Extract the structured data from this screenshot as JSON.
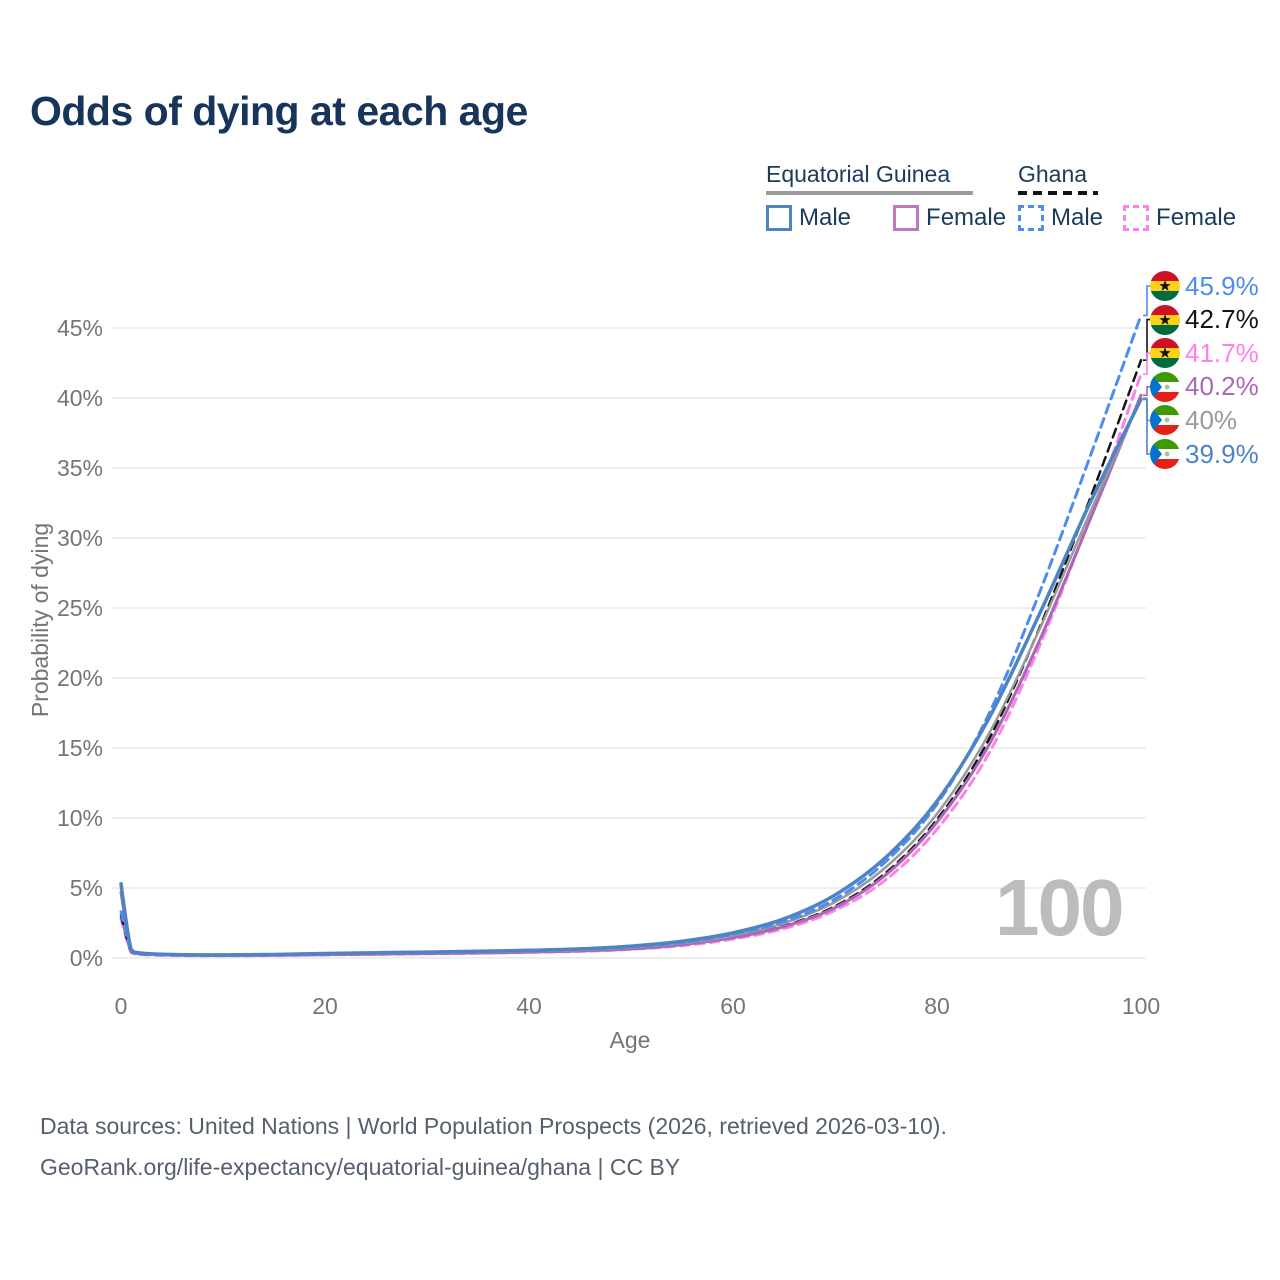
{
  "title": "Odds of dying at each age",
  "legend": {
    "groups": [
      {
        "title": "Equatorial Guinea",
        "underline_style": "solid",
        "underline_color": "#9b9b9b",
        "items": [
          {
            "label": "Male",
            "color": "#4e83c4",
            "dash": "solid"
          },
          {
            "label": "Female",
            "color": "#bd7ac1",
            "dash": "solid"
          }
        ]
      },
      {
        "title": "Ghana",
        "underline_style": "dashed",
        "underline_color": "#141414",
        "items": [
          {
            "label": "Male",
            "color": "#4e8cf0",
            "dash": "dashed"
          },
          {
            "label": "Female",
            "color": "#ff80e8",
            "dash": "dashed"
          }
        ]
      }
    ]
  },
  "watermark": "100",
  "footer": {
    "line1": "Data sources: United Nations | World Population Prospects (2026, retrieved 2026-03-10).",
    "line2": "GeoRank.org/life-expectancy/equatorial-guinea/ghana | CC BY"
  },
  "chart_data": {
    "type": "line",
    "xlabel": "Age",
    "ylabel": "Probability of dying",
    "xlim": [
      0,
      100
    ],
    "ylim": [
      0,
      47
    ],
    "xticks": [
      0,
      20,
      40,
      60,
      80,
      100
    ],
    "yticks": [
      0,
      5,
      10,
      15,
      20,
      25,
      30,
      35,
      40,
      45
    ],
    "grid": "horizontal",
    "grid_color": "#e8e8e8",
    "ages": [
      0,
      1,
      2,
      5,
      10,
      15,
      20,
      25,
      30,
      35,
      40,
      45,
      50,
      55,
      60,
      65,
      70,
      75,
      80,
      85,
      90,
      95,
      100
    ],
    "series": [
      {
        "id": "ghana-female",
        "name": "Ghana Female",
        "color": "#ff80e8",
        "dash": "dashed",
        "width": 3,
        "values": [
          2.8,
          0.4,
          0.25,
          0.18,
          0.16,
          0.18,
          0.22,
          0.26,
          0.3,
          0.34,
          0.4,
          0.48,
          0.62,
          0.88,
          1.35,
          2.1,
          3.4,
          5.6,
          9.2,
          14.5,
          22.2,
          31.5,
          41.7
        ]
      },
      {
        "id": "ghana-total",
        "name": "Ghana",
        "color": "#141414",
        "dash": "dashed",
        "width": 2.5,
        "values": [
          3.05,
          0.45,
          0.28,
          0.2,
          0.18,
          0.2,
          0.26,
          0.31,
          0.35,
          0.4,
          0.46,
          0.55,
          0.7,
          1.0,
          1.5,
          2.3,
          3.7,
          6.1,
          9.9,
          15.5,
          23.5,
          32.8,
          42.7
        ]
      },
      {
        "id": "eg-female",
        "name": "Equatorial Guinea Female",
        "color": "#a968b6",
        "dash": "solid",
        "width": 3,
        "values": [
          4.7,
          0.5,
          0.3,
          0.21,
          0.18,
          0.2,
          0.24,
          0.28,
          0.32,
          0.36,
          0.42,
          0.5,
          0.65,
          0.95,
          1.45,
          2.25,
          3.6,
          5.95,
          9.7,
          15.1,
          22.6,
          31.3,
          40.2
        ]
      },
      {
        "id": "eg-total",
        "name": "Equatorial Guinea",
        "color": "#9a9a9a",
        "dash": "solid",
        "width": 2.5,
        "values": [
          5.0,
          0.55,
          0.33,
          0.23,
          0.2,
          0.22,
          0.28,
          0.33,
          0.37,
          0.42,
          0.48,
          0.57,
          0.75,
          1.05,
          1.6,
          2.5,
          4.0,
          6.5,
          10.3,
          15.9,
          23.4,
          31.8,
          40.0
        ]
      },
      {
        "id": "ghana-male",
        "name": "Ghana Male",
        "color": "#4e8cf0",
        "dash": "dashed",
        "width": 3,
        "values": [
          3.3,
          0.5,
          0.3,
          0.22,
          0.2,
          0.23,
          0.3,
          0.36,
          0.4,
          0.45,
          0.52,
          0.62,
          0.8,
          1.1,
          1.7,
          2.6,
          4.2,
          6.9,
          11.0,
          17.3,
          26.0,
          35.8,
          45.9
        ]
      },
      {
        "id": "eg-male",
        "name": "Equatorial Guinea Male",
        "color": "#4e83c4",
        "dash": "solid",
        "width": 3.5,
        "values": [
          5.3,
          0.6,
          0.35,
          0.25,
          0.22,
          0.25,
          0.32,
          0.38,
          0.42,
          0.48,
          0.55,
          0.65,
          0.85,
          1.2,
          1.8,
          2.8,
          4.5,
          7.2,
          11.2,
          17.0,
          24.5,
          32.5,
          39.9
        ]
      }
    ],
    "end_labels": [
      {
        "series": "ghana-male",
        "label": "45.9%",
        "value": 45.9,
        "color": "#4e8cf0",
        "flag": "ghana"
      },
      {
        "series": "ghana-total",
        "label": "42.7%",
        "value": 42.7,
        "color": "#141414",
        "flag": "ghana"
      },
      {
        "series": "ghana-female",
        "label": "41.7%",
        "value": 41.7,
        "color": "#ff80e8",
        "flag": "ghana"
      },
      {
        "series": "eg-female",
        "label": "40.2%",
        "value": 40.2,
        "color": "#a968b6",
        "flag": "equatorial-guinea"
      },
      {
        "series": "eg-total",
        "label": "40%",
        "value": 40.0,
        "color": "#9a9a9a",
        "flag": "equatorial-guinea"
      },
      {
        "series": "eg-male",
        "label": "39.9%",
        "value": 39.9,
        "color": "#4e83c4",
        "flag": "equatorial-guinea"
      }
    ],
    "legend_position": "top-right"
  }
}
